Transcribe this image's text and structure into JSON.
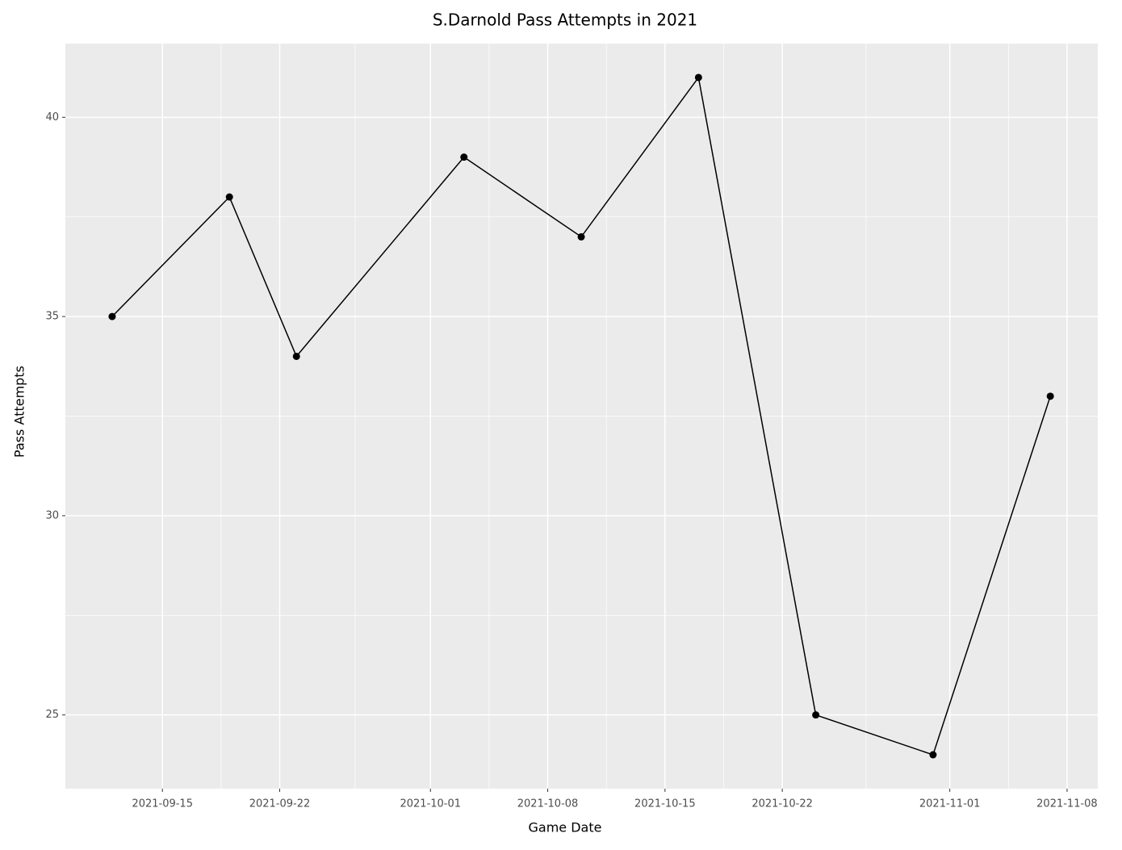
{
  "chart_data": {
    "type": "line",
    "title": "S.Darnold Pass Attempts in 2021",
    "x_label": "Game Date",
    "y_label": "Pass Attempts",
    "x": [
      "2021-09-12",
      "2021-09-19",
      "2021-09-23",
      "2021-10-03",
      "2021-10-10",
      "2021-10-17",
      "2021-10-24",
      "2021-10-31",
      "2021-11-07"
    ],
    "values": [
      35,
      38,
      34,
      39,
      37,
      41,
      25,
      24,
      33
    ],
    "color": "#000000",
    "xlim": [
      "2021-09-09T05:00:00Z",
      "2021-11-09T20:00:00Z"
    ],
    "xticks": [
      "2021-09-15",
      "2021-09-22",
      "2021-10-01",
      "2021-10-08",
      "2021-10-15",
      "2021-10-22",
      "2021-11-01",
      "2021-11-08"
    ],
    "xminor_ticks": [
      "2021-09-18T12:00:00Z",
      "2021-09-26T12:00:00Z",
      "2021-10-04T12:00:00Z",
      "2021-10-11T12:00:00Z",
      "2021-10-18T12:00:00Z",
      "2021-10-27T00:00:00Z",
      "2021-11-04T12:00:00Z"
    ],
    "ylim": [
      23.15,
      41.85
    ],
    "yticks": [
      25,
      30,
      35,
      40
    ],
    "yminor_ticks": [
      27.5,
      32.5,
      37.5
    ],
    "grid": true
  }
}
